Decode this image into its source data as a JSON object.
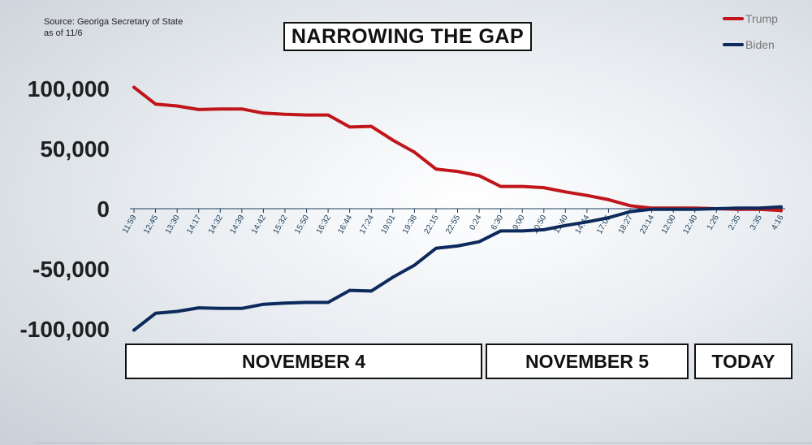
{
  "source": {
    "line1": "Source: Georiga Secretary of State",
    "line2": "as of 11/6"
  },
  "chart_data": {
    "type": "line",
    "title": "NARROWING THE GAP",
    "categories": [
      "11:59",
      "12:45",
      "13:30",
      "14:17",
      "14:32",
      "14:39",
      "14:42",
      "15:32",
      "15:50",
      "16:32",
      "16:44",
      "17:24",
      "19:01",
      "19:38",
      "22:15",
      "22:55",
      "0:24",
      "6:30",
      "9:00",
      "10:50",
      "11:40",
      "14:44",
      "17:05",
      "18:27",
      "23:14",
      "12:00",
      "12:40",
      "1:26",
      "2:35",
      "3:35",
      "4:16"
    ],
    "y_ticks": [
      "100,000",
      "50,000",
      "0",
      "-50,000",
      "-100,000"
    ],
    "y_tick_values": [
      100000,
      50000,
      0,
      -50000,
      -100000
    ],
    "ylim": [
      -100000,
      100000
    ],
    "series": [
      {
        "name": "Trump",
        "color": "#c0161b",
        "values": [
          101000,
          87000,
          85500,
          82500,
          83000,
          83000,
          79500,
          78500,
          78000,
          78000,
          68000,
          68500,
          57000,
          47000,
          33000,
          31000,
          27500,
          18500,
          18500,
          17500,
          14000,
          11000,
          7500,
          2500,
          500,
          500,
          500,
          0,
          -500,
          -500,
          -1500
        ]
      },
      {
        "name": "Biden",
        "color": "#0d2a5c",
        "values": [
          -101000,
          -87000,
          -85500,
          -82500,
          -83000,
          -83000,
          -79500,
          -78500,
          -78000,
          -78000,
          -68000,
          -68500,
          -57000,
          -47000,
          -33000,
          -31000,
          -27500,
          -18500,
          -18500,
          -17500,
          -14000,
          -11000,
          -7500,
          -2500,
          -500,
          -500,
          -500,
          0,
          500,
          500,
          1500
        ]
      }
    ],
    "legend": [
      {
        "label": "Trump",
        "color": "#c0161b"
      },
      {
        "label": "Biden",
        "color": "#0d2a5c"
      }
    ],
    "legend_position": "top-right",
    "day_groups": [
      "NOVEMBER 4",
      "NOVEMBER 5",
      "TODAY"
    ]
  }
}
